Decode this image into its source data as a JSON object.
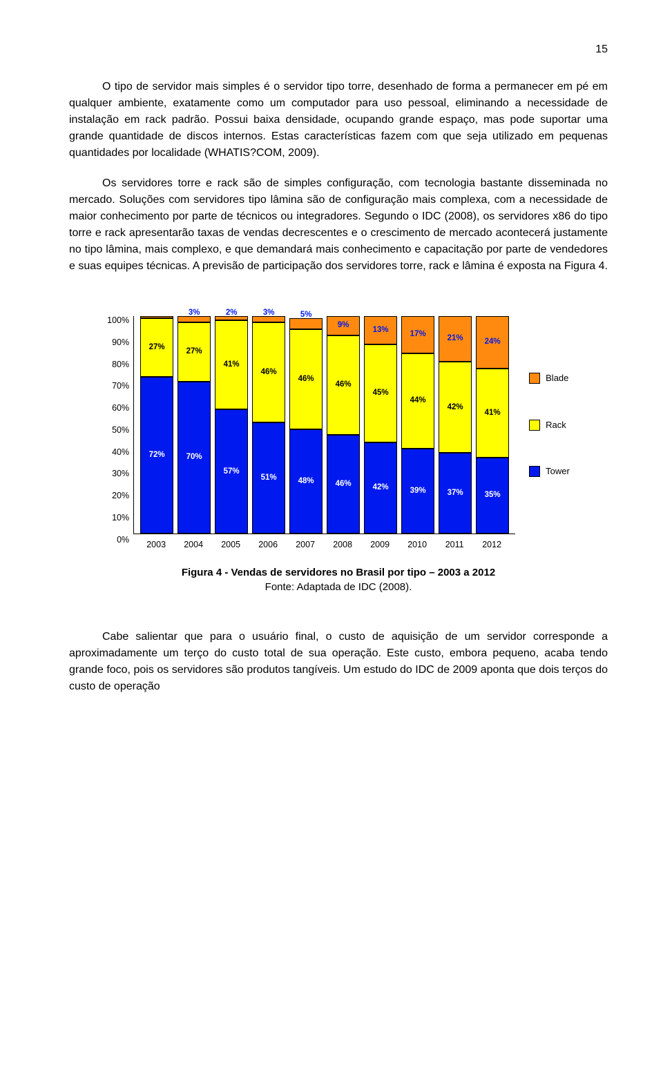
{
  "page_number": "15",
  "paragraphs": {
    "p1": "O tipo de servidor mais simples é o servidor tipo torre, desenhado de forma a permanecer em pé em qualquer ambiente, exatamente como um computador para uso pessoal, eliminando a necessidade de instalação em rack padrão. Possui baixa densidade, ocupando grande espaço, mas pode suportar uma grande quantidade de discos internos. Estas características fazem com que seja utilizado em pequenas quantidades por localidade (WHATIS?COM, 2009).",
    "p2": "Os servidores torre e rack são de simples configuração, com tecnologia bastante disseminada no mercado. Soluções com servidores tipo lâmina são de configuração mais complexa, com a necessidade de maior conhecimento por parte de técnicos ou integradores. Segundo o IDC (2008), os servidores x86 do tipo torre e rack apresentarão taxas de vendas decrescentes e o crescimento de mercado acontecerá justamente no tipo lâmina, mais complexo, e que demandará mais conhecimento e capacitação por parte de vendedores e suas equipes técnicas. A previsão de participação dos servidores torre, rack e lâmina é exposta na Figura 4.",
    "p3": "Cabe salientar que para o usuário final, o custo de aquisição de um servidor corresponde a aproximadamente um terço do custo total de sua operação. Este custo, embora pequeno, acaba tendo grande foco, pois os servidores são produtos tangíveis. Um estudo do IDC de 2009 aponta que dois terços do custo de operação"
  },
  "chart": {
    "type": "stacked-bar",
    "ylim": [
      0,
      100
    ],
    "ytick_step": 10,
    "yticks": [
      "100%",
      "90%",
      "80%",
      "70%",
      "60%",
      "50%",
      "40%",
      "30%",
      "20%",
      "10%",
      "0%"
    ],
    "categories": [
      "2003",
      "2004",
      "2005",
      "2006",
      "2007",
      "2008",
      "2009",
      "2010",
      "2011",
      "2012"
    ],
    "series": [
      {
        "name": "Tower",
        "color": "#0019ee"
      },
      {
        "name": "Rack",
        "color": "#ffff00"
      },
      {
        "name": "Blade",
        "color": "#ff8a0f"
      }
    ],
    "bars": [
      {
        "tower": 72,
        "rack": 27,
        "blade": 1,
        "tower_lbl": "72%",
        "rack_lbl": "27%",
        "blade_lbl": ""
      },
      {
        "tower": 70,
        "rack": 27,
        "blade": 3,
        "tower_lbl": "70%",
        "rack_lbl": "27%",
        "blade_lbl": "3%"
      },
      {
        "tower": 57,
        "rack": 41,
        "blade": 2,
        "tower_lbl": "57%",
        "rack_lbl": "41%",
        "blade_lbl": "2%"
      },
      {
        "tower": 51,
        "rack": 46,
        "blade": 3,
        "tower_lbl": "51%",
        "rack_lbl": "46%",
        "blade_lbl": "3%"
      },
      {
        "tower": 48,
        "rack": 46,
        "blade": 5,
        "tower_lbl": "48%",
        "rack_lbl": "46%",
        "blade_lbl": "5%"
      },
      {
        "tower": 46,
        "rack": 46,
        "blade": 9,
        "tower_lbl": "46%",
        "rack_lbl": "46%",
        "blade_lbl": "9%"
      },
      {
        "tower": 42,
        "rack": 45,
        "blade": 13,
        "tower_lbl": "42%",
        "rack_lbl": "45%",
        "blade_lbl": "13%"
      },
      {
        "tower": 39,
        "rack": 44,
        "blade": 17,
        "tower_lbl": "39%",
        "rack_lbl": "44%",
        "blade_lbl": "17%"
      },
      {
        "tower": 37,
        "rack": 42,
        "blade": 21,
        "tower_lbl": "37%",
        "rack_lbl": "42%",
        "blade_lbl": "21%"
      },
      {
        "tower": 35,
        "rack": 41,
        "blade": 24,
        "tower_lbl": "35%",
        "rack_lbl": "41%",
        "blade_lbl": "24%"
      }
    ],
    "colors": {
      "tower": "#0019ee",
      "rack": "#ffff00",
      "blade": "#ff8a0f",
      "blade_label": "#0019ee",
      "rack_label": "#000000",
      "tower_label": "#ffffff"
    }
  },
  "caption": {
    "title": "Figura 4 - Vendas de servidores no Brasil por tipo – 2003 a 2012",
    "source": "Fonte: Adaptada de IDC (2008)."
  }
}
